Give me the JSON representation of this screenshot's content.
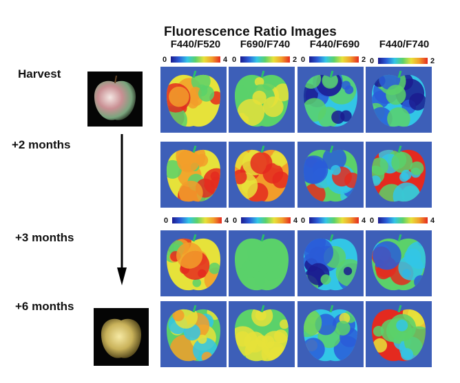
{
  "figure": {
    "title": "Fluorescence Ratio Images",
    "columns": [
      {
        "header": "F440/F520"
      },
      {
        "header": "F690/F740"
      },
      {
        "header": "F440/F690"
      },
      {
        "header": "F440/F740"
      }
    ],
    "scales_top": [
      {
        "min": "0",
        "max": "4"
      },
      {
        "min": "0",
        "max": "2"
      },
      {
        "min": "0",
        "max": "2"
      },
      {
        "min": "0",
        "max": "2"
      }
    ],
    "scales_mid": [
      {
        "min": "0",
        "max": "4"
      },
      {
        "min": "0",
        "max": "4"
      },
      {
        "min": "0",
        "max": "4"
      },
      {
        "min": "0",
        "max": "4"
      }
    ],
    "rows": [
      {
        "label": "Harvest"
      },
      {
        "label": "+2 months"
      },
      {
        "label": "+3 months"
      },
      {
        "label": "+6 months"
      }
    ],
    "photos": [
      {
        "depicts": "red-green apple at harvest"
      },
      {
        "depicts": "yellow apple after 6 months"
      }
    ],
    "colors": {
      "background_panel": "#3d5fb8",
      "low": "#1b1b8f",
      "blue": "#2a5cd8",
      "cyan": "#32c6e6",
      "green": "#5bd16a",
      "yellow": "#e6e23a",
      "orange": "#f29d2a",
      "high": "#e42a1f"
    }
  }
}
